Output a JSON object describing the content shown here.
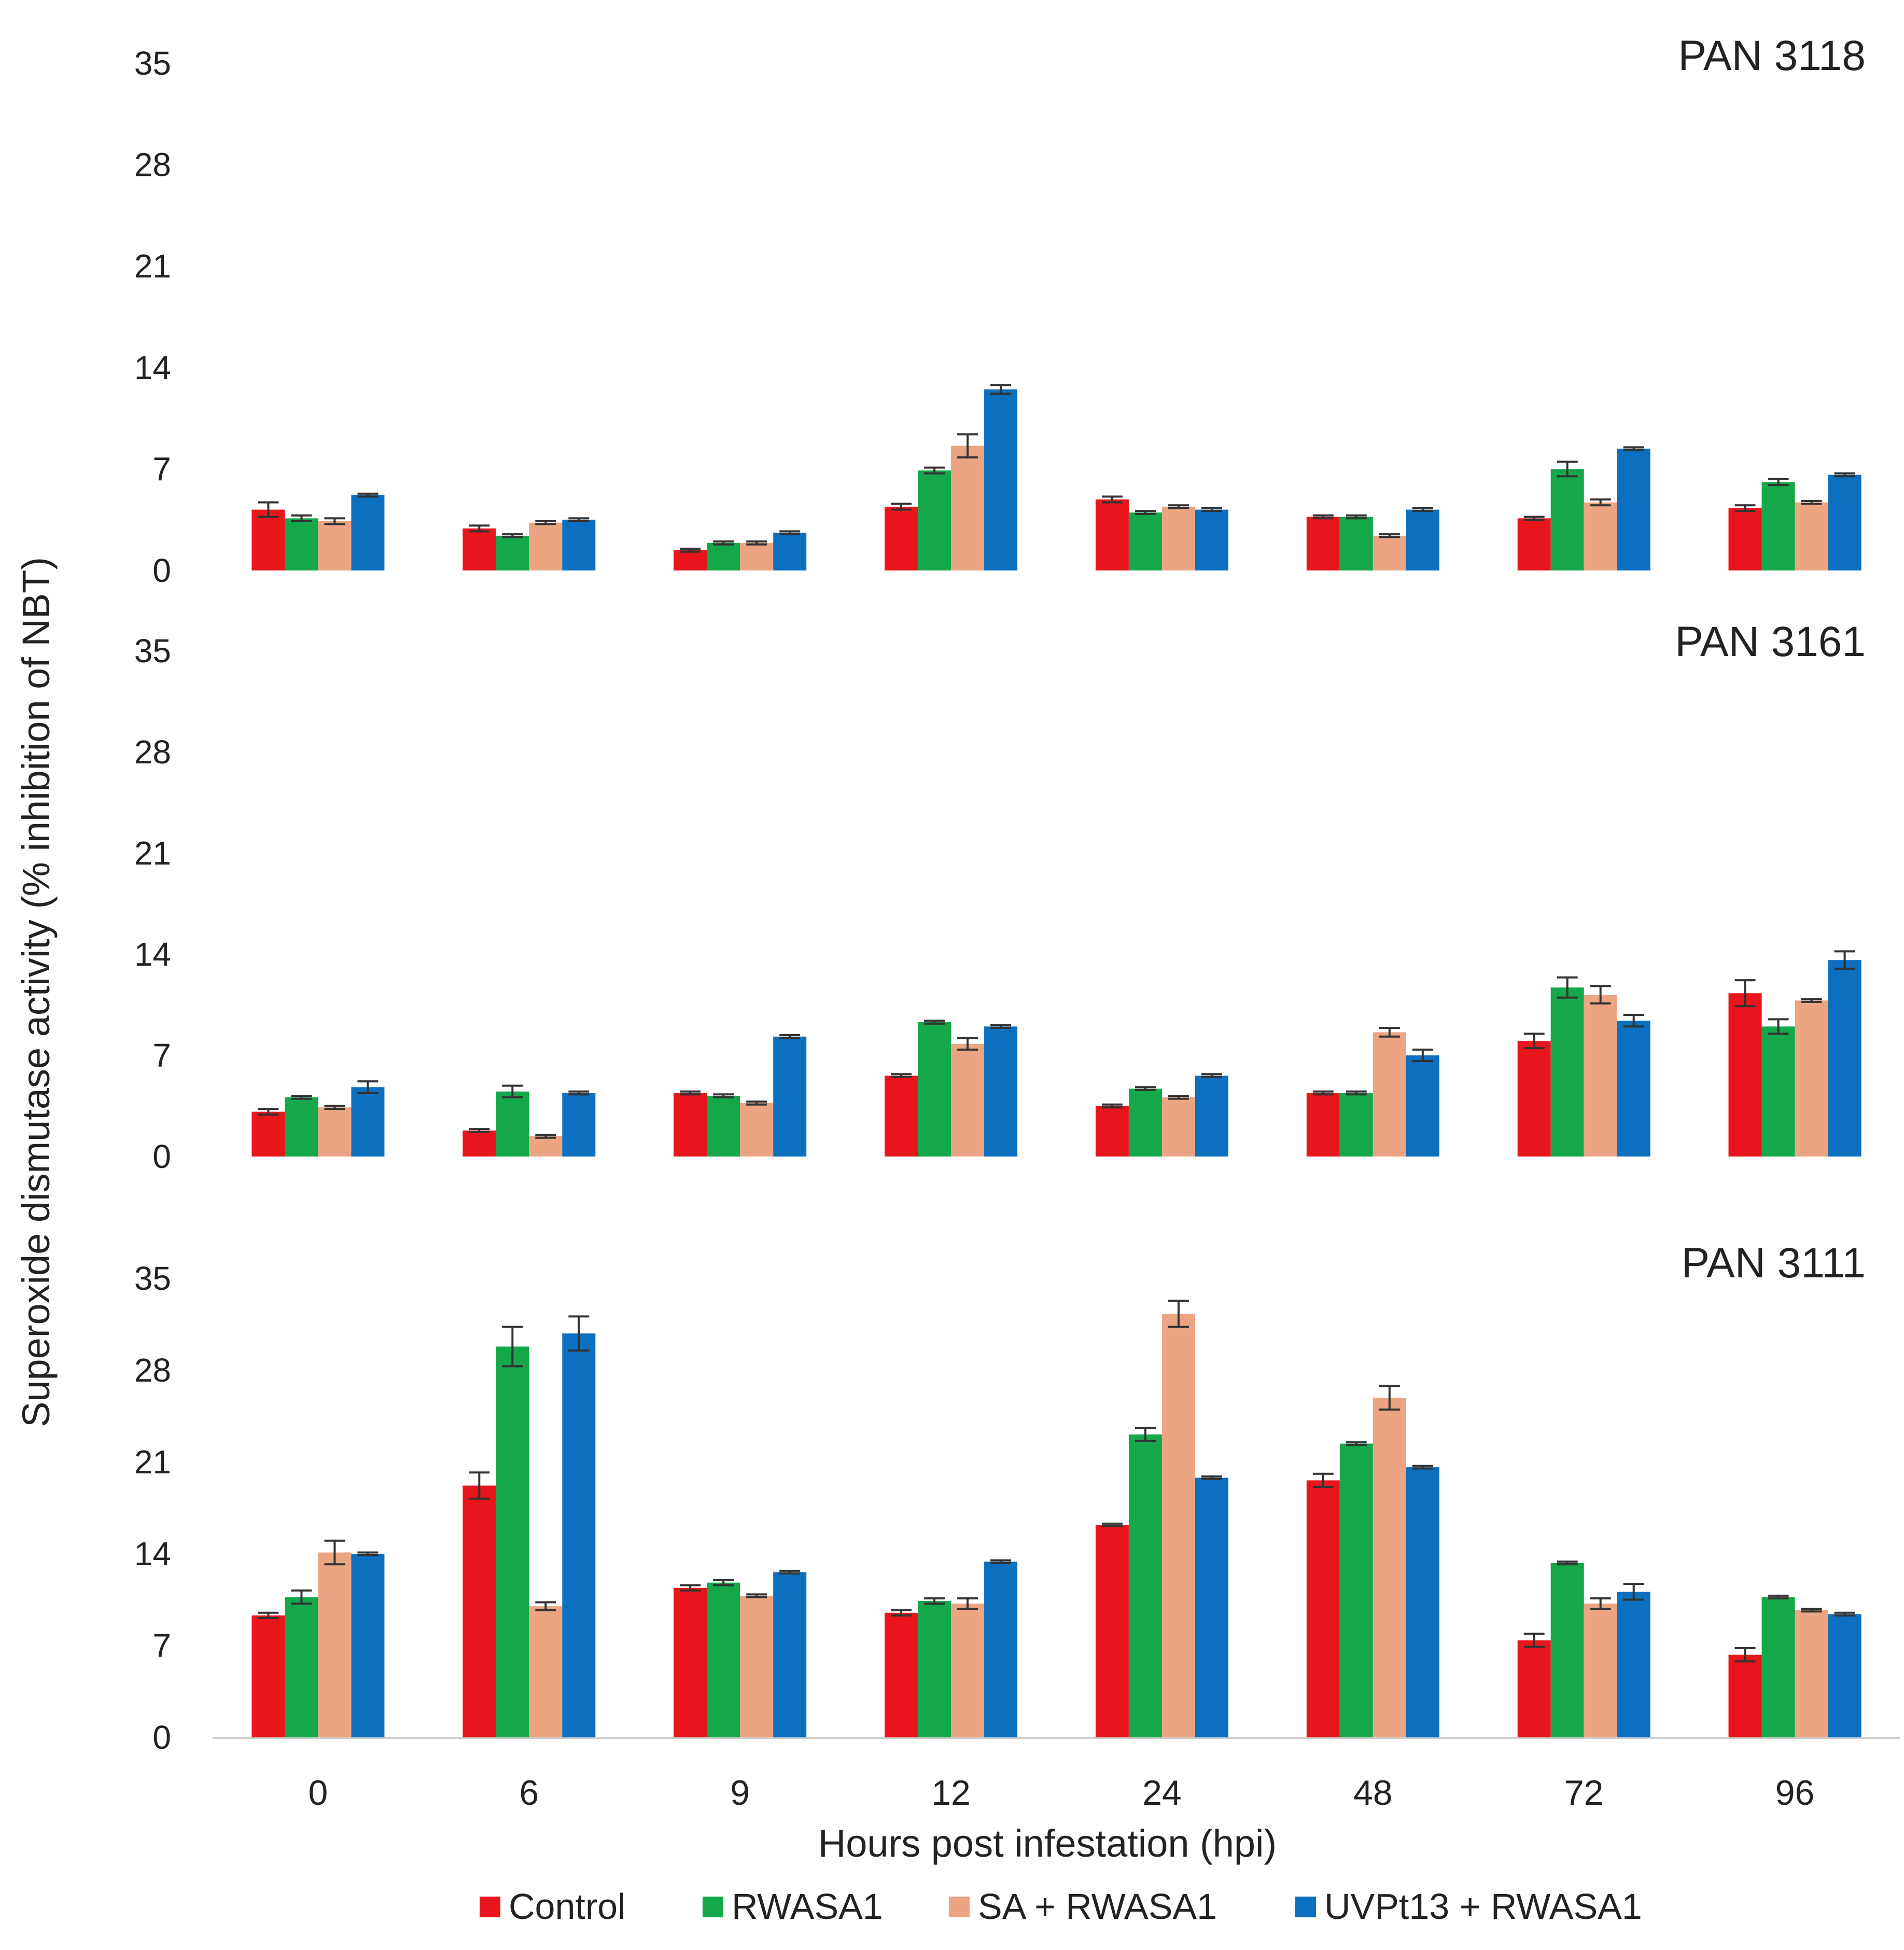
{
  "chart_data": {
    "type": "bar",
    "ylabel": "Superoxide dismutase activity (% inhibition of NBT)",
    "xlabel": "Hours post infestation (hpi)",
    "categories": [
      "0",
      "6",
      "9",
      "12",
      "24",
      "48",
      "72",
      "96"
    ],
    "ylim": [
      0,
      35
    ],
    "yticks": [
      "0",
      "7",
      "14",
      "21",
      "28",
      "35"
    ],
    "legend": {
      "position": "bottom",
      "entries": [
        "Control",
        "RWASA1",
        "SA + RWASA1",
        "UVPt13 + RWASA1"
      ]
    },
    "colors": [
      "#e8161c",
      "#14a84a",
      "#eba583",
      "#0c6fc0"
    ],
    "error_bars": true,
    "panels": [
      {
        "title": "PAN 3118",
        "series": [
          {
            "name": "Control",
            "values": [
              4.2,
              2.9,
              1.4,
              4.4,
              4.9,
              3.7,
              3.6,
              4.3
            ],
            "errors": [
              0.5,
              0.2,
              0.1,
              0.2,
              0.2,
              0.1,
              0.1,
              0.2
            ]
          },
          {
            "name": "RWASA1",
            "values": [
              3.6,
              2.4,
              1.9,
              6.9,
              4.0,
              3.7,
              7.0,
              6.1
            ],
            "errors": [
              0.2,
              0.1,
              0.1,
              0.2,
              0.1,
              0.1,
              0.5,
              0.2
            ]
          },
          {
            "name": "SA + RWASA1",
            "values": [
              3.4,
              3.3,
              1.9,
              8.6,
              4.4,
              2.4,
              4.7,
              4.7
            ],
            "errors": [
              0.2,
              0.1,
              0.1,
              0.8,
              0.1,
              0.1,
              0.2,
              0.1
            ]
          },
          {
            "name": "UVPt13 + RWASA1",
            "values": [
              5.2,
              3.5,
              2.6,
              12.5,
              4.2,
              4.2,
              8.4,
              6.6
            ],
            "errors": [
              0.1,
              0.1,
              0.1,
              0.3,
              0.1,
              0.1,
              0.1,
              0.1
            ]
          }
        ]
      },
      {
        "title": "PAN 3161",
        "series": [
          {
            "name": "Control",
            "values": [
              3.1,
              1.8,
              4.4,
              5.6,
              3.5,
              4.4,
              8.0,
              11.3
            ],
            "errors": [
              0.2,
              0.1,
              0.1,
              0.1,
              0.1,
              0.1,
              0.5,
              0.9
            ]
          },
          {
            "name": "RWASA1",
            "values": [
              4.1,
              4.5,
              4.2,
              9.3,
              4.7,
              4.4,
              11.7,
              9.0
            ],
            "errors": [
              0.1,
              0.4,
              0.1,
              0.1,
              0.1,
              0.1,
              0.7,
              0.5
            ]
          },
          {
            "name": "SA + RWASA1",
            "values": [
              3.4,
              1.4,
              3.7,
              7.8,
              4.1,
              8.6,
              11.2,
              10.8
            ],
            "errors": [
              0.1,
              0.1,
              0.1,
              0.4,
              0.1,
              0.3,
              0.6,
              0.1
            ]
          },
          {
            "name": "UVPt13 + RWASA1",
            "values": [
              4.8,
              4.4,
              8.3,
              9.0,
              5.6,
              7.0,
              9.4,
              13.6
            ],
            "errors": [
              0.4,
              0.1,
              0.1,
              0.1,
              0.1,
              0.4,
              0.4,
              0.6
            ]
          }
        ]
      },
      {
        "title": "PAN 3111",
        "series": [
          {
            "name": "Control",
            "values": [
              9.3,
              19.2,
              11.4,
              9.5,
              16.2,
              19.6,
              7.4,
              6.3
            ],
            "errors": [
              0.2,
              1.0,
              0.2,
              0.2,
              0.1,
              0.5,
              0.5,
              0.5
            ]
          },
          {
            "name": "RWASA1",
            "values": [
              10.7,
              29.8,
              11.8,
              10.4,
              23.1,
              22.4,
              13.3,
              10.7
            ],
            "errors": [
              0.5,
              1.5,
              0.2,
              0.2,
              0.5,
              0.1,
              0.1,
              0.1
            ]
          },
          {
            "name": "SA + RWASA1",
            "values": [
              14.1,
              10.0,
              10.8,
              10.2,
              32.3,
              25.9,
              10.2,
              9.7
            ],
            "errors": [
              0.9,
              0.3,
              0.1,
              0.4,
              1.0,
              0.9,
              0.4,
              0.1
            ]
          },
          {
            "name": "UVPt13 + RWASA1",
            "values": [
              14.0,
              30.8,
              12.6,
              13.4,
              19.8,
              20.6,
              11.1,
              9.4
            ],
            "errors": [
              0.1,
              1.3,
              0.1,
              0.1,
              0.1,
              0.1,
              0.6,
              0.1
            ]
          }
        ]
      }
    ]
  }
}
